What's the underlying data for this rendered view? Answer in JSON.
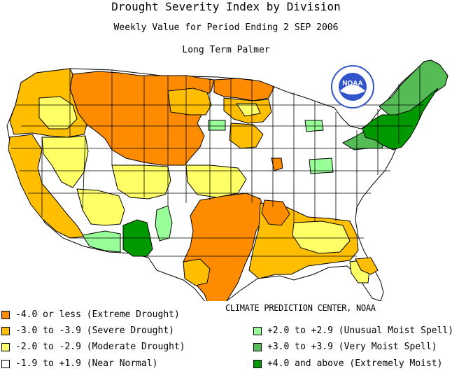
{
  "title": "Drought Severity Index by Division",
  "subtitle": "Weekly Value for Period Ending  2 SEP 2006",
  "index_name": "Long Term Palmer",
  "credit": "CLIMATE PREDICTION CENTER, NOAA",
  "logo_text": "NOAA",
  "colors": {
    "extreme_drought": "#ff8c00",
    "severe_drought": "#ffbf00",
    "moderate_drought": "#ffff66",
    "near_normal": "#ffffff",
    "unusual_moist": "#99ff99",
    "very_moist": "#55bb55",
    "extremely_moist": "#009900"
  },
  "legend": {
    "extreme_drought": "-4.0 or less (Extreme Drought)",
    "severe_drought": "-3.0 to -3.9 (Severe Drought)",
    "moderate_drought": "-2.0 to -2.9 (Moderate Drought)",
    "near_normal": "-1.9 to +1.9 (Near Normal)",
    "unusual_moist": "+2.0 to +2.9 (Unusual Moist Spell)",
    "very_moist": "+3.0 to +3.9 (Very Moist Spell)",
    "extremely_moist": "+4.0 and above (Extremely Moist)"
  }
}
